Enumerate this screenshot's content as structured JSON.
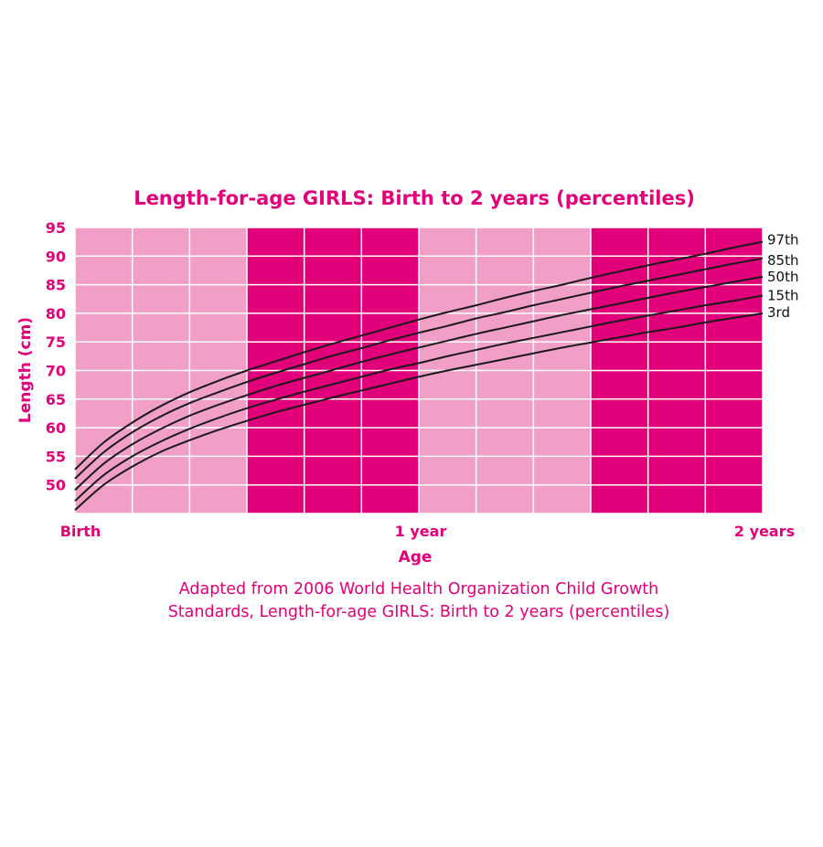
{
  "chart_data": {
    "type": "line",
    "title": "Length-for-age GIRLS: Birth to 2 years (percentiles)",
    "xlabel": "Age",
    "ylabel": "Length (cm)",
    "xlim": [
      0,
      24
    ],
    "ylim": [
      45,
      95
    ],
    "x_ticks": [
      {
        "value": 0,
        "label": "Birth"
      },
      {
        "value": 12,
        "label": "1 year"
      },
      {
        "value": 24,
        "label": "2 years"
      }
    ],
    "y_ticks": [
      50,
      55,
      60,
      65,
      70,
      75,
      80,
      85,
      90,
      95
    ],
    "grid": true,
    "x": [
      0,
      1,
      2,
      3,
      4,
      5,
      6,
      7,
      8,
      9,
      10,
      11,
      12,
      13,
      14,
      15,
      16,
      17,
      18,
      19,
      20,
      21,
      22,
      23,
      24
    ],
    "series": [
      {
        "name": "3rd",
        "values": [
          45.6,
          50.0,
          53.2,
          55.8,
          57.8,
          59.6,
          61.2,
          62.7,
          64.0,
          65.3,
          66.5,
          67.7,
          68.9,
          70.0,
          71.0,
          72.0,
          73.0,
          74.0,
          74.9,
          75.8,
          76.7,
          77.5,
          78.4,
          79.2,
          80.0
        ]
      },
      {
        "name": "15th",
        "values": [
          47.2,
          51.7,
          55.0,
          57.6,
          59.8,
          61.7,
          63.4,
          64.9,
          66.3,
          67.6,
          68.9,
          70.2,
          71.3,
          72.5,
          73.6,
          74.7,
          75.7,
          76.7,
          77.7,
          78.7,
          79.6,
          80.5,
          81.4,
          82.2,
          83.1
        ]
      },
      {
        "name": "50th",
        "values": [
          49.1,
          53.7,
          57.1,
          59.8,
          62.1,
          64.0,
          65.7,
          67.3,
          68.7,
          70.1,
          71.5,
          72.8,
          74.0,
          75.2,
          76.4,
          77.5,
          78.6,
          79.7,
          80.7,
          81.7,
          82.7,
          83.7,
          84.6,
          85.5,
          86.4
        ]
      },
      {
        "name": "85th",
        "values": [
          51.1,
          55.7,
          59.2,
          62.0,
          64.3,
          66.2,
          68.0,
          69.6,
          71.1,
          72.6,
          73.9,
          75.3,
          76.6,
          77.8,
          79.1,
          80.2,
          81.4,
          82.5,
          83.6,
          84.7,
          85.7,
          86.7,
          87.7,
          88.7,
          89.6
        ]
      },
      {
        "name": "97th",
        "values": [
          52.7,
          57.4,
          60.9,
          63.8,
          66.2,
          68.2,
          70.0,
          71.6,
          73.2,
          74.7,
          76.1,
          77.5,
          78.9,
          80.2,
          81.4,
          82.7,
          83.9,
          85.0,
          86.2,
          87.3,
          88.4,
          89.4,
          90.4,
          91.5,
          92.5
        ]
      }
    ],
    "band_colors": [
      "#f19fc6",
      "#e2007a"
    ],
    "grid_color": "#ffffff",
    "curve_color": "#1a1a1a",
    "text_color": "#e2007a"
  },
  "caption": {
    "line1": "Adapted from 2006 World Health Organization Child Growth",
    "line2": "Standards, Length-for-age GIRLS: Birth to 2 years (percentiles)"
  }
}
